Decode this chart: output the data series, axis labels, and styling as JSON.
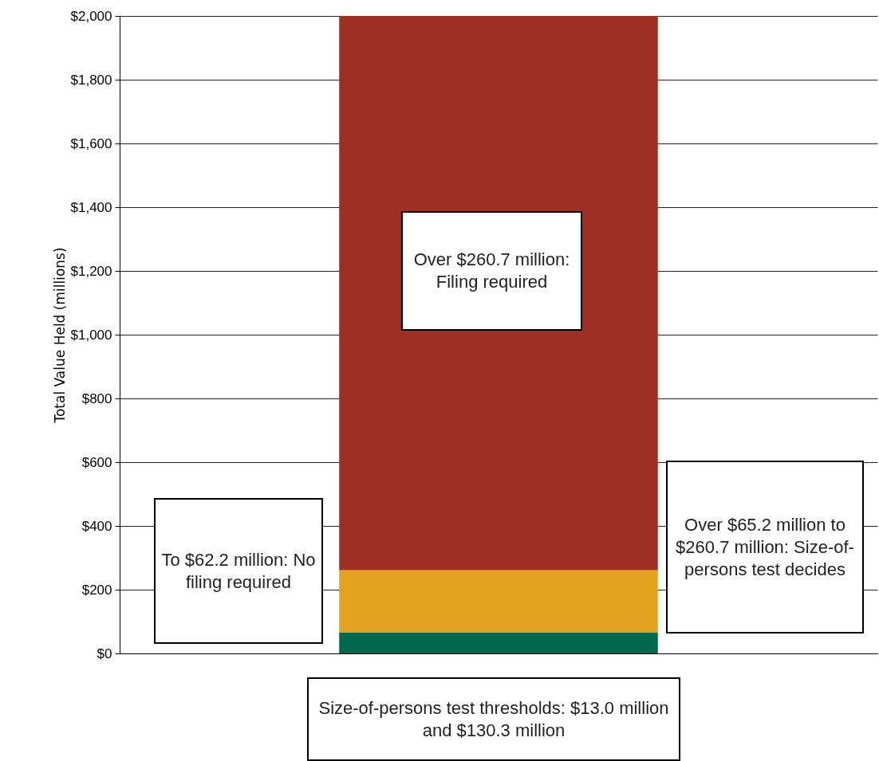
{
  "chart_data": {
    "type": "bar",
    "stacked": true,
    "categories": [
      null
    ],
    "series": [
      {
        "color": "#006a4e",
        "values": [
          65
        ]
      },
      {
        "color": "#e3a21f",
        "values": [
          196
        ]
      },
      {
        "color": "#9e2f22",
        "values": [
          1739
        ]
      }
    ],
    "ylabel": "Total Value Held (millions)",
    "ylim": [
      0,
      2000
    ],
    "yticks": [
      {
        "value": 0,
        "label": "$0"
      },
      {
        "value": 200,
        "label": "$200"
      },
      {
        "value": 400,
        "label": "$400"
      },
      {
        "value": 600,
        "label": "$600"
      },
      {
        "value": 800,
        "label": "$800"
      },
      {
        "value": 1000,
        "label": "$1,000"
      },
      {
        "value": 1200,
        "label": "$1,200"
      },
      {
        "value": 1400,
        "label": "$1,400"
      },
      {
        "value": 1600,
        "label": "$1,600"
      },
      {
        "value": 1800,
        "label": "$1,800"
      },
      {
        "value": 2000,
        "label": "$2,000"
      }
    ],
    "grid": true,
    "annotations": [
      "To $62.2 million: No filing required",
      "Over $260.7 million: Filing required",
      "Over $65.2 million to $260.7 million: Size-of-persons test decides",
      "Size-of-persons test thresholds: $13.0 million and $130.3 million"
    ]
  }
}
